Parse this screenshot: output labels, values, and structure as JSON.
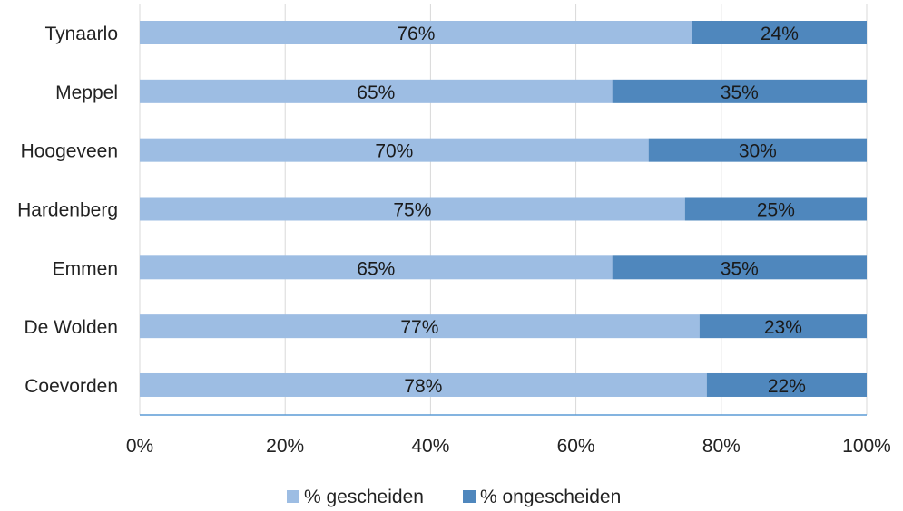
{
  "chart_data": {
    "type": "bar",
    "orientation": "horizontal",
    "stacked": "percent",
    "categories": [
      "Tynaarlo",
      "Meppel",
      "Hoogeveen",
      "Hardenberg",
      "Emmen",
      "De Wolden",
      "Coevorden"
    ],
    "series": [
      {
        "name": "% gescheiden",
        "values": [
          76,
          65,
          70,
          75,
          65,
          77,
          78
        ],
        "labels": [
          "76%",
          "65%",
          "70%",
          "75%",
          "65%",
          "77%",
          "78%"
        ],
        "color": "#9dbde3"
      },
      {
        "name": "% ongescheiden",
        "values": [
          24,
          35,
          30,
          25,
          35,
          23,
          22
        ],
        "labels": [
          "24%",
          "35%",
          "30%",
          "25%",
          "35%",
          "23%",
          "22%"
        ],
        "color": "#4f87bd"
      }
    ],
    "xlim": [
      0,
      100
    ],
    "xticks": [
      0,
      20,
      40,
      60,
      80,
      100
    ],
    "xtick_labels": [
      "0%",
      "20%",
      "40%",
      "60%",
      "80%",
      "100%"
    ],
    "grid": "vertical",
    "legend_position": "bottom",
    "title": "",
    "xlabel": "",
    "ylabel": ""
  }
}
